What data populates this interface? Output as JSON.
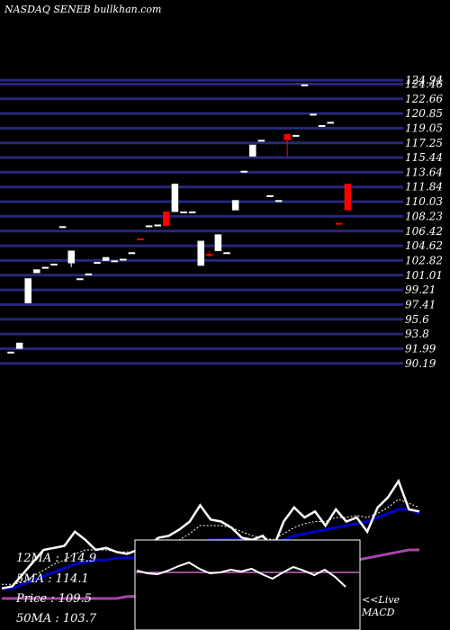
{
  "header": {
    "source_label": "NASDAQ SENEB bullkhan.com"
  },
  "chart_data": {
    "type": "candlestick",
    "price_axis": {
      "range": [
        89.5,
        126.5
      ],
      "ticks": [
        "124.94",
        "124.46",
        "122.66",
        "120.85",
        "119.05",
        "117.25",
        "115.44",
        "113.64",
        "111.84",
        "110.03",
        "108.23",
        "106.42",
        "104.62",
        "102.82",
        "101.01",
        "99.21",
        "97.41",
        "95.6",
        "93.8",
        "91.99",
        "90.19"
      ]
    },
    "candles": [
      {
        "o": 91.6,
        "h": 91.6,
        "l": 91.6,
        "c": 91.6,
        "color": "#ffffff"
      },
      {
        "o": 92.0,
        "h": 92.7,
        "l": 92.0,
        "c": 92.7,
        "color": "#ffffff"
      },
      {
        "o": 97.6,
        "h": 100.6,
        "l": 97.6,
        "c": 100.6,
        "color": "#ffffff"
      },
      {
        "o": 101.3,
        "h": 101.7,
        "l": 101.3,
        "c": 101.7,
        "color": "#ffffff"
      },
      {
        "o": 102.0,
        "h": 102.0,
        "l": 102.0,
        "c": 102.0,
        "color": "#ffffff"
      },
      {
        "o": 102.4,
        "h": 102.4,
        "l": 102.4,
        "c": 102.4,
        "color": "#ffffff"
      },
      {
        "o": 107.0,
        "h": 107.0,
        "l": 107.0,
        "c": 107.0,
        "color": "#ffffff"
      },
      {
        "o": 102.5,
        "h": 104.0,
        "l": 102.0,
        "c": 104.0,
        "color": "#ffffff"
      },
      {
        "o": 100.6,
        "h": 100.6,
        "l": 100.6,
        "c": 100.6,
        "color": "#ffffff"
      },
      {
        "o": 101.2,
        "h": 101.2,
        "l": 101.2,
        "c": 101.2,
        "color": "#ffffff"
      },
      {
        "o": 102.6,
        "h": 102.6,
        "l": 102.6,
        "c": 102.6,
        "color": "#ffffff"
      },
      {
        "o": 102.8,
        "h": 103.2,
        "l": 102.8,
        "c": 103.2,
        "color": "#ffffff"
      },
      {
        "o": 102.8,
        "h": 102.8,
        "l": 102.8,
        "c": 102.8,
        "color": "#ffffff"
      },
      {
        "o": 103.0,
        "h": 103.0,
        "l": 103.0,
        "c": 103.0,
        "color": "#ffffff"
      },
      {
        "o": 103.8,
        "h": 103.8,
        "l": 103.8,
        "c": 103.8,
        "color": "#ffffff"
      },
      {
        "o": 105.5,
        "h": 105.5,
        "l": 105.5,
        "c": 105.5,
        "color": "#ff0000"
      },
      {
        "o": 107.1,
        "h": 107.1,
        "l": 107.1,
        "c": 107.1,
        "color": "#ffffff"
      },
      {
        "o": 107.2,
        "h": 107.2,
        "l": 107.2,
        "c": 107.2,
        "color": "#ffffff"
      },
      {
        "o": 108.8,
        "h": 108.8,
        "l": 107.1,
        "c": 107.1,
        "color": "#ff0000"
      },
      {
        "o": 108.8,
        "h": 112.2,
        "l": 108.8,
        "c": 112.2,
        "color": "#ffffff"
      },
      {
        "o": 108.8,
        "h": 108.8,
        "l": 108.8,
        "c": 108.8,
        "color": "#ffffff"
      },
      {
        "o": 108.8,
        "h": 108.8,
        "l": 108.8,
        "c": 108.8,
        "color": "#ffffff"
      },
      {
        "o": 102.2,
        "h": 105.2,
        "l": 102.2,
        "c": 105.2,
        "color": "#ffffff"
      },
      {
        "o": 103.6,
        "h": 104.0,
        "l": 103.2,
        "c": 103.6,
        "color": "#ff0000"
      },
      {
        "o": 104.0,
        "h": 106.0,
        "l": 104.0,
        "c": 106.0,
        "color": "#ffffff"
      },
      {
        "o": 103.8,
        "h": 103.8,
        "l": 103.8,
        "c": 103.8,
        "color": "#ffffff"
      },
      {
        "o": 109.0,
        "h": 110.2,
        "l": 109.0,
        "c": 110.2,
        "color": "#ffffff"
      },
      {
        "o": 113.8,
        "h": 113.8,
        "l": 113.8,
        "c": 113.8,
        "color": "#ffffff"
      },
      {
        "o": 115.6,
        "h": 117.0,
        "l": 115.6,
        "c": 117.0,
        "color": "#ffffff"
      },
      {
        "o": 117.6,
        "h": 117.6,
        "l": 117.6,
        "c": 117.6,
        "color": "#ffffff"
      },
      {
        "o": 110.8,
        "h": 110.8,
        "l": 110.8,
        "c": 110.8,
        "color": "#ffffff"
      },
      {
        "o": 110.2,
        "h": 110.2,
        "l": 110.2,
        "c": 110.2,
        "color": "#ffffff"
      },
      {
        "o": 118.3,
        "h": 118.3,
        "l": 115.6,
        "c": 117.6,
        "color": "#ff0000"
      },
      {
        "o": 118.2,
        "h": 118.2,
        "l": 118.2,
        "c": 118.2,
        "color": "#ffffff"
      },
      {
        "o": 124.4,
        "h": 124.4,
        "l": 124.4,
        "c": 124.4,
        "color": "#ffffff"
      },
      {
        "o": 120.8,
        "h": 120.8,
        "l": 120.8,
        "c": 120.8,
        "color": "#ffffff"
      },
      {
        "o": 119.4,
        "h": 119.4,
        "l": 119.4,
        "c": 119.4,
        "color": "#ffffff"
      },
      {
        "o": 119.8,
        "h": 119.8,
        "l": 119.8,
        "c": 119.8,
        "color": "#ffffff"
      },
      {
        "o": 107.4,
        "h": 107.4,
        "l": 107.4,
        "c": 107.4,
        "color": "#ff0000"
      },
      {
        "o": 112.2,
        "h": 112.2,
        "l": 109.0,
        "c": 109.0,
        "color": "#ff0000"
      }
    ],
    "indicator_panel": {
      "range": [
        0,
        100
      ],
      "price_line": [
        5,
        6,
        12,
        18,
        24,
        25,
        26,
        33,
        29,
        24,
        25,
        23,
        22,
        24,
        26,
        30,
        31,
        34,
        38,
        46,
        39,
        38,
        35,
        30,
        29,
        31,
        25,
        38,
        45,
        40,
        43,
        36,
        44,
        38,
        40,
        33,
        45,
        50,
        58,
        44,
        43
      ],
      "ma_12": [
        5,
        5,
        7,
        9,
        11,
        13,
        15,
        17,
        18,
        19,
        19,
        20,
        20,
        20,
        21,
        22,
        23,
        24,
        26,
        28,
        29,
        29,
        29,
        29,
        28,
        28,
        28,
        29,
        31,
        32,
        33,
        34,
        35,
        36,
        37,
        38,
        40,
        42,
        44,
        44,
        42
      ],
      "ma_5": [
        7,
        7,
        8,
        11,
        14,
        17,
        19,
        22,
        24,
        24,
        24,
        23,
        23,
        23,
        24,
        25,
        27,
        29,
        32,
        36,
        36,
        36,
        35,
        33,
        31,
        30,
        29,
        32,
        35,
        37,
        38,
        38,
        40,
        40,
        41,
        40,
        42,
        45,
        49,
        47,
        45
      ],
      "ma_50": [
        0,
        0,
        0,
        0,
        0,
        0,
        0,
        0,
        0,
        0,
        0,
        0,
        1,
        1,
        1,
        2,
        2,
        3,
        4,
        5,
        6,
        7,
        8,
        9,
        10,
        10,
        11,
        12,
        13,
        14,
        15,
        16,
        17,
        18,
        19,
        20,
        21,
        22,
        23,
        24,
        24
      ]
    },
    "macd_panel": {
      "macd": [
        66,
        63,
        62,
        66,
        71,
        75,
        68,
        63,
        64,
        67,
        65,
        68,
        62,
        57,
        64,
        70,
        66,
        61,
        67,
        59,
        48
      ],
      "signal": 64
    },
    "legend": [
      {
        "label": "12MA : 114.9"
      },
      {
        "label": "5MA : 114.1"
      },
      {
        "label": "Price : 109.5"
      },
      {
        "label": "50MA : 103.7"
      }
    ],
    "macd_label": [
      "<<Live",
      "MACD"
    ],
    "colors": {
      "grid": "#27277a",
      "price_line": "#ffffff",
      "ma_12": "#0000cc",
      "ma_5": "#ffffff",
      "ma_50": "#aa44aa",
      "macd_line": "#ffffff",
      "macd_signal": "#cc66cc",
      "up": "#ffffff",
      "down": "#ff0000"
    }
  }
}
